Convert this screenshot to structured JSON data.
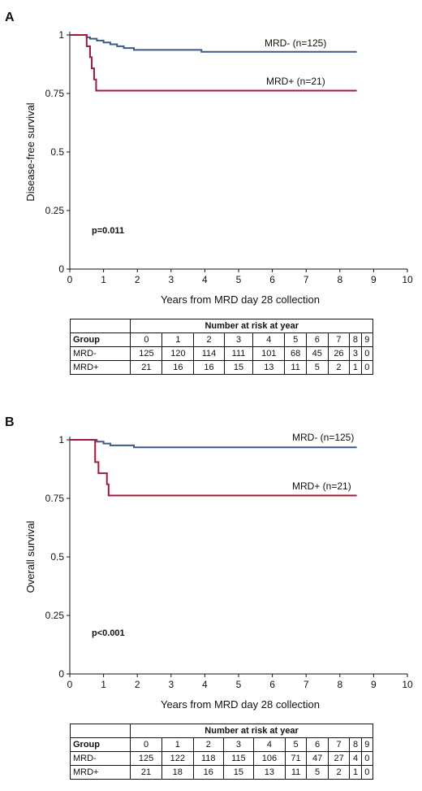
{
  "colors": {
    "mrd_neg": "#3a5a8a",
    "mrd_pos": "#a3193a",
    "axis": "#111111"
  },
  "chart_data": [
    {
      "type": "line",
      "panel": "A",
      "ylabel": "Disease-free survival",
      "xlabel": "Years from MRD day 28 collection",
      "xlim": [
        0,
        10
      ],
      "ylim": [
        0,
        1
      ],
      "xticks": [
        "0",
        "1",
        "2",
        "3",
        "4",
        "5",
        "6",
        "7",
        "8",
        "9",
        "10"
      ],
      "yticks": [
        "0",
        "0.25",
        "0.5",
        "0.75",
        "1"
      ],
      "grid": false,
      "annotation": "p=0.011",
      "series": [
        {
          "name": "MRD- (n=125)",
          "step": true,
          "x": [
            0,
            0.5,
            0.6,
            0.8,
            1.0,
            1.2,
            1.4,
            1.6,
            1.9,
            3.9,
            8.5
          ],
          "y": [
            1,
            0.99,
            0.984,
            0.976,
            0.968,
            0.96,
            0.952,
            0.944,
            0.936,
            0.928,
            0.928
          ]
        },
        {
          "name": "MRD+ (n=21)",
          "step": true,
          "x": [
            0,
            0.5,
            0.6,
            0.65,
            0.72,
            0.78,
            8.5
          ],
          "y": [
            1,
            0.952,
            0.905,
            0.857,
            0.81,
            0.762,
            0.762
          ]
        }
      ],
      "risk_table": {
        "title": "Number at risk at year",
        "header_label": "Group",
        "years": [
          "0",
          "1",
          "2",
          "3",
          "4",
          "5",
          "6",
          "7",
          "8",
          "9"
        ],
        "rows": [
          {
            "group": "MRD-",
            "values": [
              "125",
              "120",
              "114",
              "111",
              "101",
              "68",
              "45",
              "26",
              "3",
              "0"
            ]
          },
          {
            "group": "MRD+",
            "values": [
              "21",
              "16",
              "16",
              "15",
              "13",
              "11",
              "5",
              "2",
              "1",
              "0"
            ]
          }
        ]
      }
    },
    {
      "type": "line",
      "panel": "B",
      "ylabel": "Overall survival",
      "xlabel": "Years from MRD day 28 collection",
      "xlim": [
        0,
        10
      ],
      "ylim": [
        0,
        1
      ],
      "xticks": [
        "0",
        "1",
        "2",
        "3",
        "4",
        "5",
        "6",
        "7",
        "8",
        "9",
        "10"
      ],
      "yticks": [
        "0",
        "0.25",
        "0.5",
        "0.75",
        "1"
      ],
      "grid": false,
      "annotation": "p<0.001",
      "series": [
        {
          "name": "MRD- (n=125)",
          "step": true,
          "x": [
            0,
            0.8,
            1.0,
            1.2,
            1.9,
            8.5
          ],
          "y": [
            1,
            0.992,
            0.984,
            0.976,
            0.968,
            0.968
          ]
        },
        {
          "name": "MRD+ (n=21)",
          "step": true,
          "x": [
            0,
            0.75,
            0.85,
            1.1,
            1.15,
            8.5
          ],
          "y": [
            1,
            0.905,
            0.857,
            0.81,
            0.762,
            0.762
          ]
        }
      ],
      "risk_table": {
        "title": "Number at risk at year",
        "header_label": "Group",
        "years": [
          "0",
          "1",
          "2",
          "3",
          "4",
          "5",
          "6",
          "7",
          "8",
          "9"
        ],
        "rows": [
          {
            "group": "MRD-",
            "values": [
              "125",
              "122",
              "118",
              "115",
              "106",
              "71",
              "47",
              "27",
              "4",
              "0"
            ]
          },
          {
            "group": "MRD+",
            "values": [
              "21",
              "18",
              "16",
              "15",
              "13",
              "11",
              "5",
              "2",
              "1",
              "0"
            ]
          }
        ]
      }
    }
  ]
}
